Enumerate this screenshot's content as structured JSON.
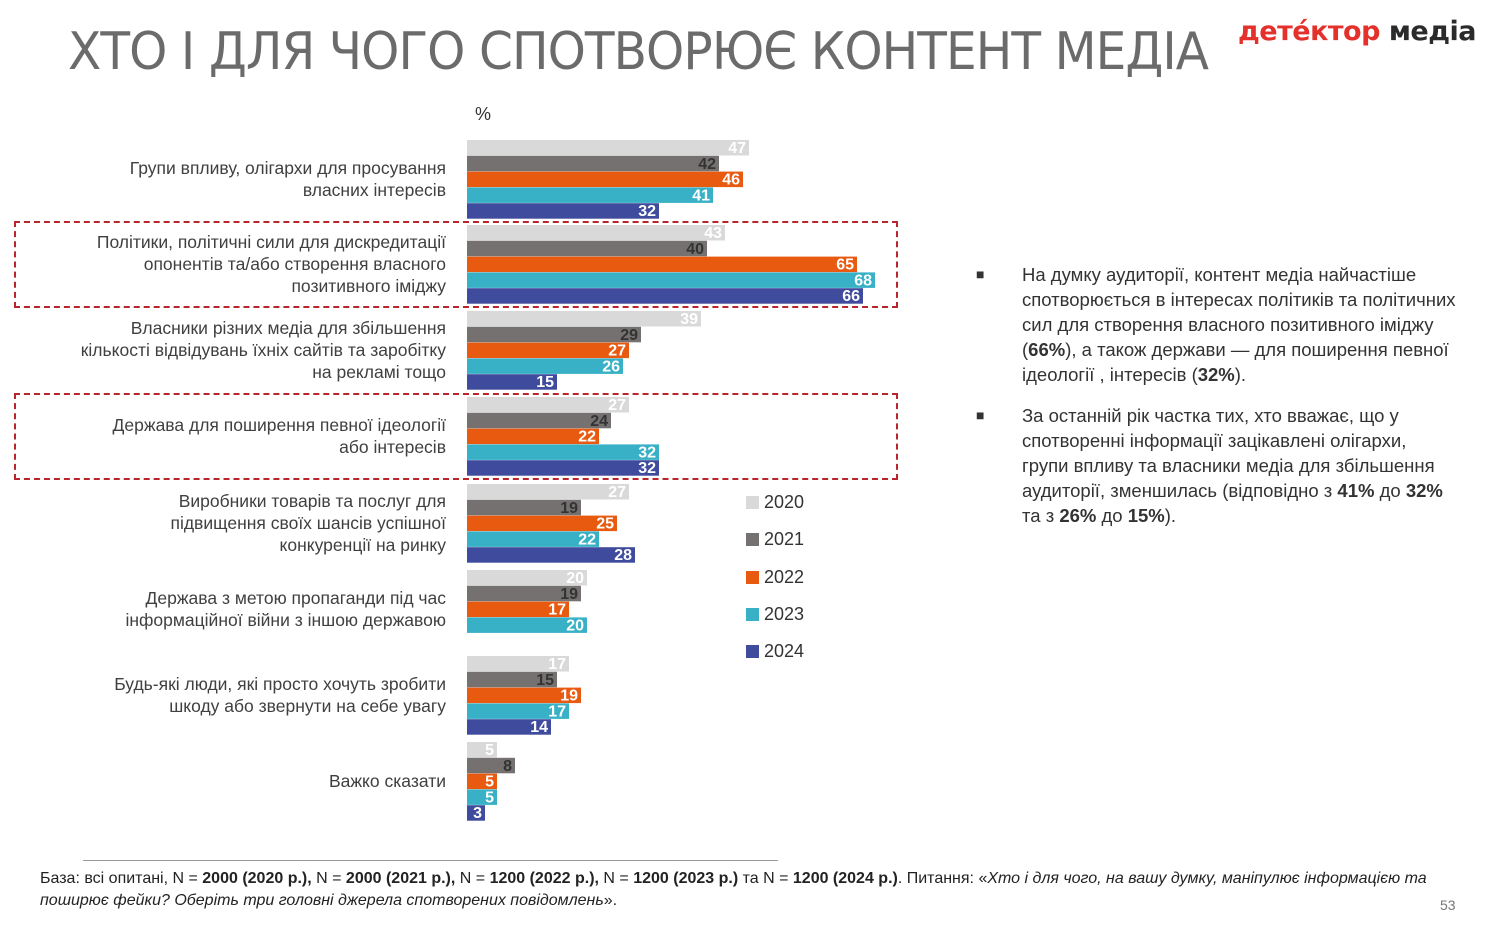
{
  "title": "ХТО І ДЛЯ ЧОГО СПОТВОРЮЄ КОНТЕНТ МЕДІА",
  "logo": {
    "part1": "детéктор",
    "part2": " медіа"
  },
  "page_number": "53",
  "colors": {
    "2020": "#d9d9d9",
    "2021": "#767171",
    "2022": "#e85a10",
    "2023": "#38b1c6",
    "2024": "#3f4b9c",
    "highlight": "#b8252b"
  },
  "chart_data": {
    "type": "bar",
    "orientation": "horizontal",
    "unit": "%",
    "categories": [
      "Групи впливу, олігархи для просування\nвласних інтересів",
      "Політики, політичні сили для дискредитації\nопонентів та/або створення власного\nпозитивного іміджу",
      "Власники різних медіа для збільшення\nкількості відвідувань їхніх сайтів та заробітку\nна рекламі тощо",
      "Держава для поширення певної ідеології\nабо інтересів",
      "Виробники товарів та послуг для\nпідвищення своїх шансів успішної\nконкуренції на ринку",
      "Держава з метою пропаганди під час\nінформаційної війни з іншою державою",
      "Будь-які люди, які просто хочуть зробити\nшкоду або звернути на себе увагу",
      "Важко сказати"
    ],
    "series": [
      {
        "name": "2020",
        "values": [
          47,
          43,
          39,
          27,
          27,
          20,
          17,
          5
        ]
      },
      {
        "name": "2021",
        "values": [
          42,
          40,
          29,
          24,
          19,
          19,
          15,
          8
        ]
      },
      {
        "name": "2022",
        "values": [
          46,
          65,
          27,
          22,
          25,
          17,
          19,
          5
        ]
      },
      {
        "name": "2023",
        "values": [
          41,
          68,
          26,
          32,
          22,
          20,
          17,
          5
        ]
      },
      {
        "name": "2024",
        "values": [
          32,
          66,
          15,
          32,
          28,
          null,
          14,
          3
        ]
      }
    ],
    "highlighted_categories": [
      1,
      3
    ],
    "legend_position": "right"
  },
  "bullets": [
    [
      {
        "t": "На думку аудиторії, контент медіа найчастіше спотворюється в інтересах політиків та політичних сил для створення власного позитивного іміджу (",
        "b": false
      },
      {
        "t": "66%",
        "b": true
      },
      {
        "t": "), а також держави — для поширення певної ідеології , інтересів (",
        "b": false
      },
      {
        "t": "32%",
        "b": true
      },
      {
        "t": ").",
        "b": false
      }
    ],
    [
      {
        "t": "За останній рік частка тих, хто вважає, що у спотворенні інформації зацікавлені олігархи, групи впливу та власники медіа для збільшення аудиторії, зменшилась (відповідно з ",
        "b": false
      },
      {
        "t": "41%",
        "b": true
      },
      {
        "t": " до ",
        "b": false
      },
      {
        "t": "32%",
        "b": true
      },
      {
        "t": " та з ",
        "b": false
      },
      {
        "t": "26%",
        "b": true
      },
      {
        "t": " до ",
        "b": false
      },
      {
        "t": "15%",
        "b": true
      },
      {
        "t": ").",
        "b": false
      }
    ]
  ],
  "bullet_marker": "■",
  "footnote": [
    {
      "t": "База: всі опитані, N = ",
      "s": "n"
    },
    {
      "t": "2000 (2020 р.),",
      "s": "b"
    },
    {
      "t": " N = ",
      "s": "n"
    },
    {
      "t": "2000 (2021 р.),",
      "s": "b"
    },
    {
      "t": " N = ",
      "s": "n"
    },
    {
      "t": "1200 (2022 р.),",
      "s": "b"
    },
    {
      "t": " N = ",
      "s": "n"
    },
    {
      "t": "1200 (2023 р.)",
      "s": "b"
    },
    {
      "t": " та N = ",
      "s": "n"
    },
    {
      "t": "1200 (2024 р.)",
      "s": "b"
    },
    {
      "t": ". Питання: «",
      "s": "n"
    },
    {
      "t": "Хто і для чого, на вашу думку, маніпулює інформацією та поширює фейки? Оберіть три головні джерела спотворених повідомлень",
      "s": "i"
    },
    {
      "t": "».",
      "s": "n"
    }
  ]
}
